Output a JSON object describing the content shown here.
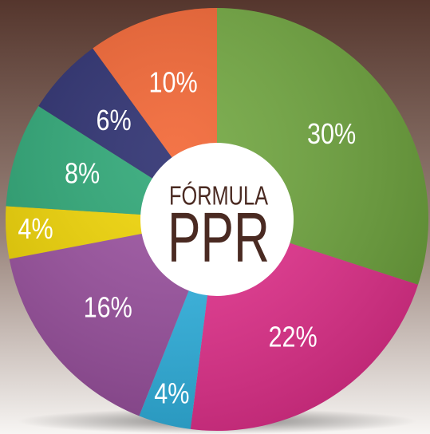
{
  "chart_data": {
    "type": "pie",
    "title": "FÓRMULA",
    "subtitle": "PPR",
    "values": [
      30,
      22,
      4,
      16,
      4,
      8,
      6,
      10
    ],
    "value_labels": [
      "30%",
      "22%",
      "4%",
      "16%",
      "4%",
      "8%",
      "6%",
      "10%"
    ],
    "colors": [
      "#6fa63d",
      "#e8318f",
      "#2fb5e4",
      "#9a4f9f",
      "#f1d500",
      "#2aa674",
      "#272a6c",
      "#f2622f"
    ]
  }
}
